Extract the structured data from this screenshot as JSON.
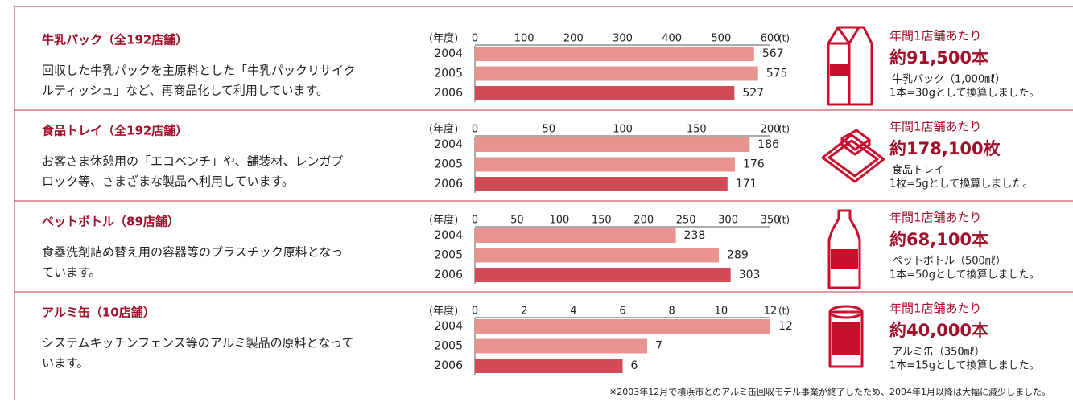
{
  "chart_data": [
    {
      "type": "bar",
      "title": "牛乳パック（全192店舗）",
      "description": [
        "回収した牛乳パックを主原料とした「牛乳パックリサイク",
        "ルティッシュ」など、再商品化して利用しています。"
      ],
      "year_label": "(年度)",
      "unit_label": "(t)",
      "categories": [
        "2004",
        "2005",
        "2006"
      ],
      "values": [
        567,
        575,
        527
      ],
      "colors": [
        "#e8938f",
        "#e8938f",
        "#d14a55"
      ],
      "xlim": [
        0,
        600
      ],
      "xticks": [
        0,
        100,
        200,
        300,
        400,
        500,
        600
      ],
      "summary": {
        "label": "年間1店舗あたり",
        "amount": "約91,500本",
        "item": "牛乳パック（1,000㎖）",
        "basis": "1本=30gとして換算しました。"
      }
    },
    {
      "type": "bar",
      "title": "食品トレイ（全192店舗）",
      "description": [
        "お客さま休憩用の「エコベンチ」や、舗装材、レンガブ",
        "ロック等、さまざまな製品へ利用しています。"
      ],
      "year_label": "(年度)",
      "unit_label": "(t)",
      "categories": [
        "2004",
        "2005",
        "2006"
      ],
      "values": [
        186,
        176,
        171
      ],
      "colors": [
        "#e8938f",
        "#e8938f",
        "#d14a55"
      ],
      "xlim": [
        0,
        200
      ],
      "xticks": [
        0,
        50,
        100,
        150,
        200
      ],
      "summary": {
        "label": "年間1店舗あたり",
        "amount": "約178,100枚",
        "item": "食品トレイ",
        "basis": "1枚=5gとして換算しました。"
      }
    },
    {
      "type": "bar",
      "title": "ペットボトル（89店舗）",
      "description": [
        "食器洗剤詰め替え用の容器等のプラスチック原料となっ",
        "ています。"
      ],
      "year_label": "(年度)",
      "unit_label": "(t)",
      "categories": [
        "2004",
        "2005",
        "2006"
      ],
      "values": [
        238,
        289,
        303
      ],
      "colors": [
        "#e8938f",
        "#e8938f",
        "#d14a55"
      ],
      "xlim": [
        0,
        350
      ],
      "xticks": [
        0,
        50,
        100,
        150,
        200,
        250,
        300,
        350
      ],
      "summary": {
        "label": "年間1店舗あたり",
        "amount": "約68,100本",
        "item": "ペットボトル（500㎖）",
        "basis": "1本=50gとして換算しました。"
      }
    },
    {
      "type": "bar",
      "title": "アルミ缶（10店舗）",
      "description": [
        "システムキッチンフェンス等のアルミ製品の原料となって",
        "います。"
      ],
      "year_label": "(年度)",
      "unit_label": "(t)",
      "categories": [
        "2004",
        "2005",
        "2006"
      ],
      "values": [
        12,
        7,
        6
      ],
      "colors": [
        "#e8938f",
        "#e8938f",
        "#d14a55"
      ],
      "xlim": [
        0,
        12
      ],
      "xticks": [
        0,
        2,
        4,
        6,
        8,
        10,
        12
      ],
      "summary": {
        "label": "年間1店舗あたり",
        "amount": "約40,000本",
        "item": "アルミ缶（350㎖）",
        "basis": "1本=15gとして換算しました。"
      }
    }
  ],
  "footnote": "※2003年12月で横浜市とのアルミ缶回収モデル事業が終了したため、2004年1月以降は大幅に減少しました。"
}
